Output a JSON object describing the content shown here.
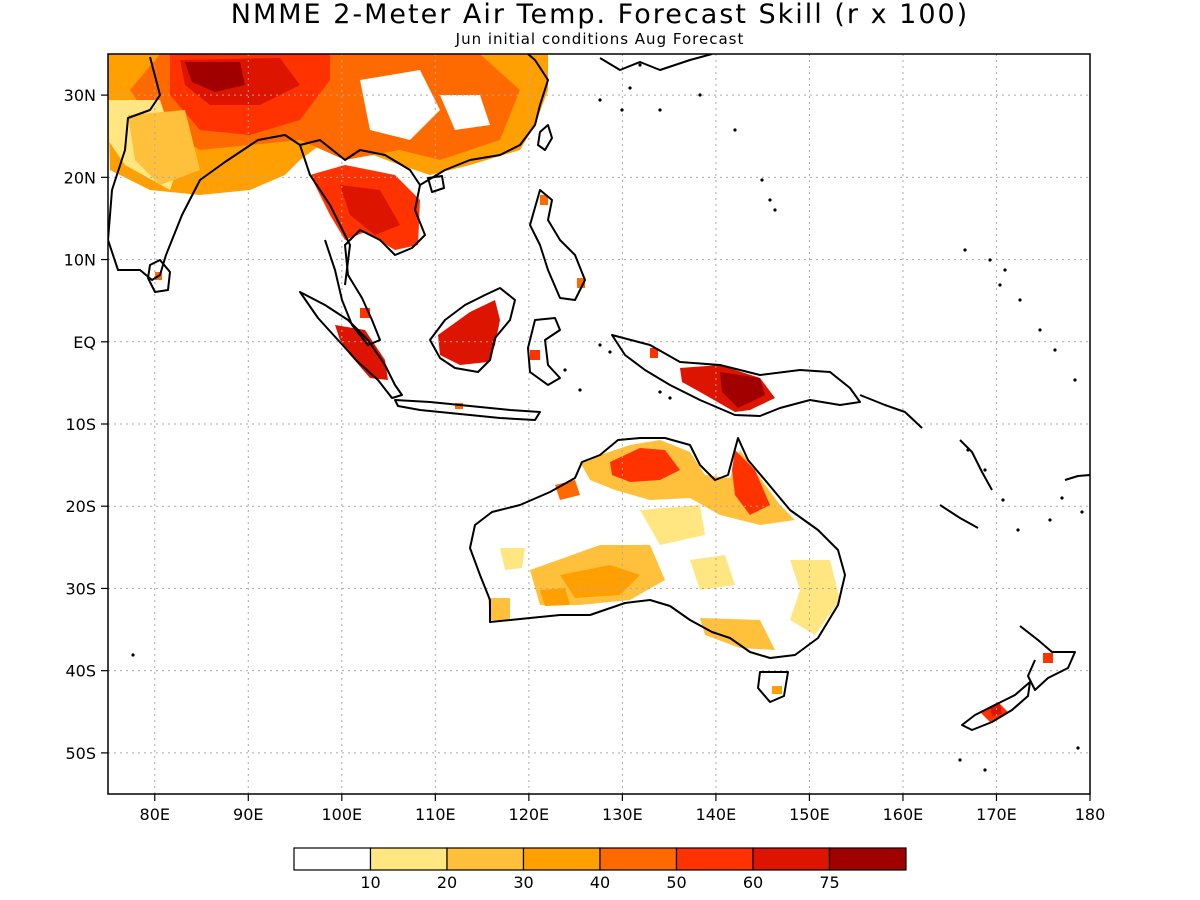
{
  "title": "NMME 2-Meter Air Temp. Forecast Skill (r x 100)",
  "subtitle": "Jun initial conditions  Aug Forecast",
  "map": {
    "projection": "cylindrical lat-lon",
    "lon_range": [
      75,
      180
    ],
    "lat_range": [
      -55,
      35
    ],
    "grid": "dotted, every 10 degrees",
    "lon_ticks": [
      "80E",
      "90E",
      "100E",
      "110E",
      "120E",
      "130E",
      "140E",
      "150E",
      "160E",
      "170E",
      "180"
    ],
    "lat_ticks": [
      "30N",
      "20N",
      "10N",
      "EQ",
      "10S",
      "20S",
      "30S",
      "40S",
      "50S"
    ],
    "coastline_color": "#000000"
  },
  "colorbar": {
    "colors": [
      "#ffffff",
      "#ffe680",
      "#ffc03c",
      "#ffa000",
      "#ff6a00",
      "#ff3200",
      "#dd1400",
      "#a00000"
    ],
    "labels": [
      "10",
      "20",
      "30",
      "40",
      "50",
      "60",
      "75"
    ]
  },
  "skill_regions": [
    {
      "name": "Tibet / China",
      "level": 6
    },
    {
      "name": "Indochina",
      "level": 6
    },
    {
      "name": "Borneo",
      "level": 6
    },
    {
      "name": "Sumatra",
      "level": 6
    },
    {
      "name": "New Guinea",
      "level": 6
    },
    {
      "name": "Northern Australia",
      "level": 5
    },
    {
      "name": "Central Australia",
      "level": 4
    },
    {
      "name": "New Zealand",
      "level": 6
    }
  ]
}
